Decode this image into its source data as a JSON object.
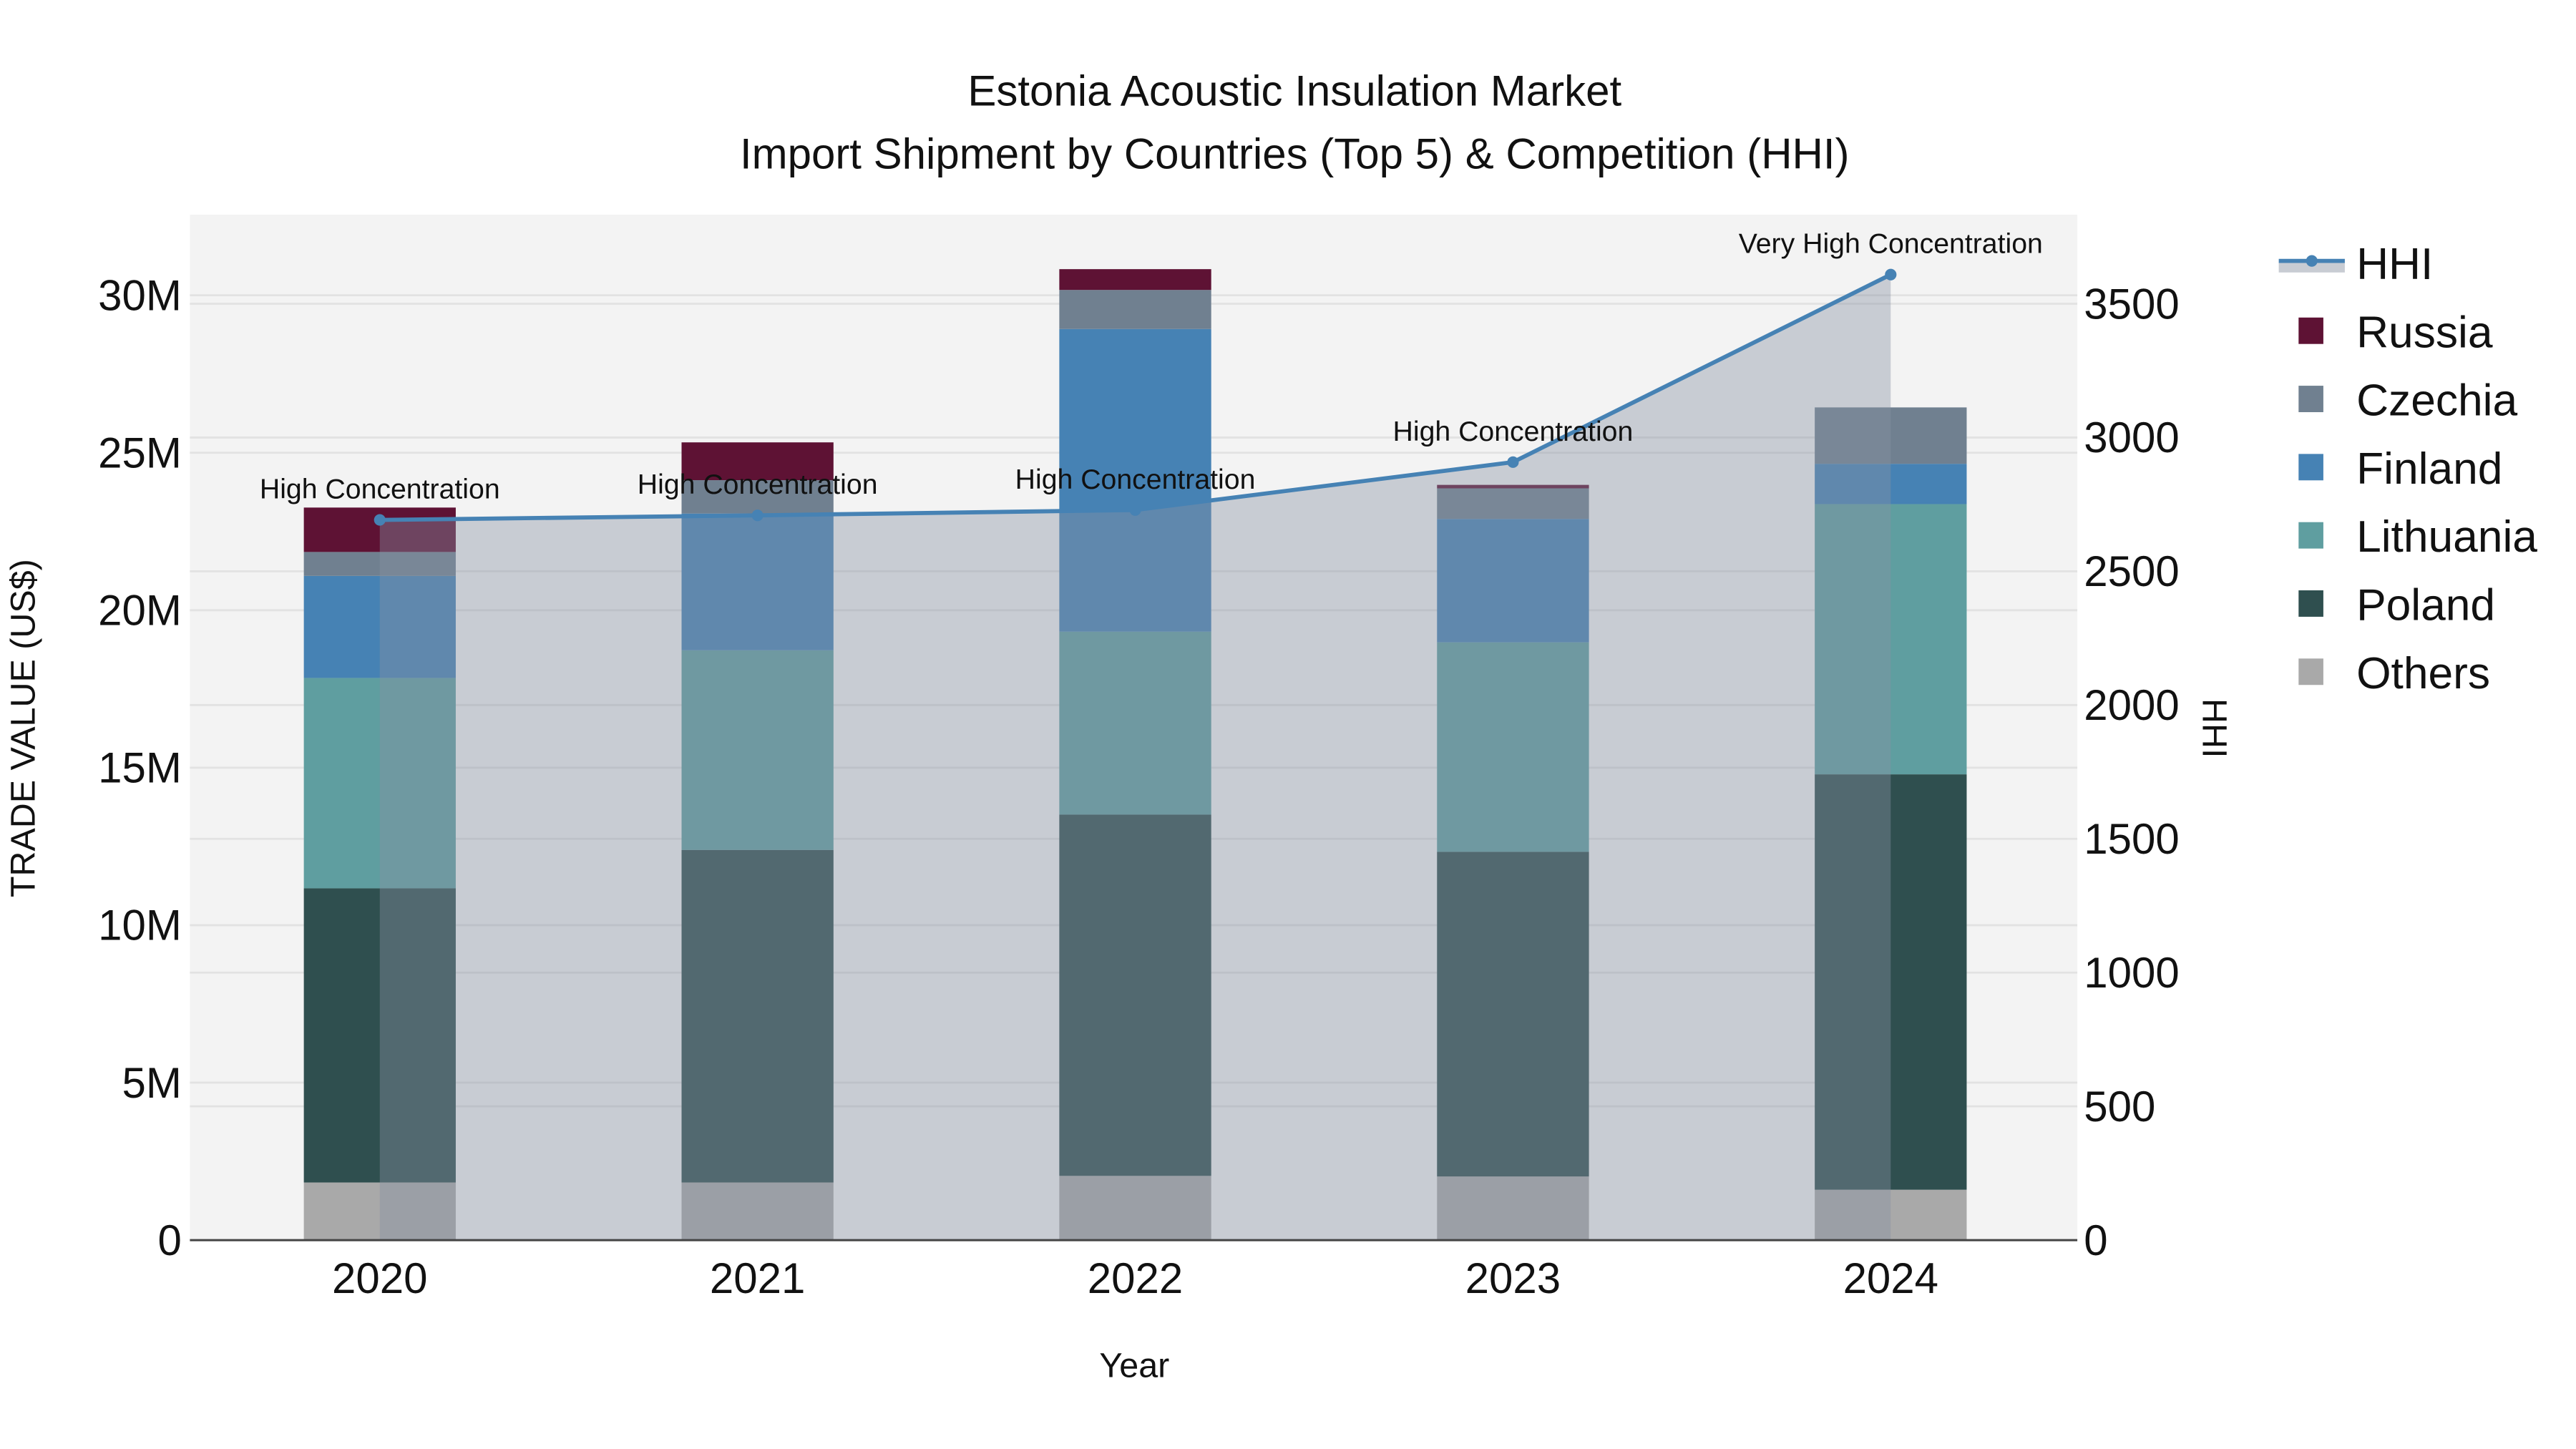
{
  "chart_data": {
    "type": "bar",
    "stacked": true,
    "title": "Estonia Acoustic Insulation Market",
    "subtitle": "Import Shipment by Countries (Top 5) & Competition (HHI)",
    "xlabel": "Year",
    "ylabel": "TRADE VALUE (US$)",
    "y2label": "HHI",
    "categories": [
      "2020",
      "2021",
      "2022",
      "2023",
      "2024"
    ],
    "ylim": [
      0,
      32560000
    ],
    "y_ticks": [
      0,
      5000000,
      10000000,
      15000000,
      20000000,
      25000000,
      30000000
    ],
    "y_tick_labels": [
      "0",
      "5M",
      "10M",
      "15M",
      "20M",
      "25M",
      "30M"
    ],
    "y2lim": [
      0,
      3833
    ],
    "y2_ticks": [
      0,
      500,
      1000,
      1500,
      2000,
      2500,
      3000,
      3500
    ],
    "y2_tick_labels": [
      "0",
      "500",
      "1000",
      "1500",
      "2000",
      "2500",
      "3000",
      "3500"
    ],
    "grid": true,
    "legend_placement": "right",
    "series": [
      {
        "name": "Others",
        "color": "#a9a9a9",
        "values": [
          1830000,
          1830000,
          2040000,
          2020000,
          1600000
        ]
      },
      {
        "name": "Poland",
        "color": "#2f4f4f",
        "values": [
          9340000,
          10560000,
          11470000,
          10310000,
          13190000
        ]
      },
      {
        "name": "Lithuania",
        "color": "#5f9ea0",
        "values": [
          6680000,
          6340000,
          5810000,
          6650000,
          8580000
        ]
      },
      {
        "name": "Finland",
        "color": "#4682b4",
        "values": [
          3240000,
          4340000,
          9610000,
          3920000,
          1280000
        ]
      },
      {
        "name": "Czechia",
        "color": "#708090",
        "values": [
          760000,
          1060000,
          1240000,
          970000,
          1790000
        ]
      },
      {
        "name": "Russia",
        "color": "#5e1234",
        "values": [
          1410000,
          1200000,
          660000,
          110000,
          0
        ]
      }
    ],
    "line_series": {
      "name": "HHI",
      "color": "#4682b4",
      "axis": "y2",
      "values": [
        2692,
        2709,
        2729,
        2908,
        3609
      ],
      "annotations": [
        "High Concentration",
        "High Concentration",
        "High Concentration",
        "High Concentration",
        "Very High Concentration"
      ]
    },
    "legend": [
      "HHI",
      "Russia",
      "Czechia",
      "Finland",
      "Lithuania",
      "Poland",
      "Others"
    ]
  }
}
